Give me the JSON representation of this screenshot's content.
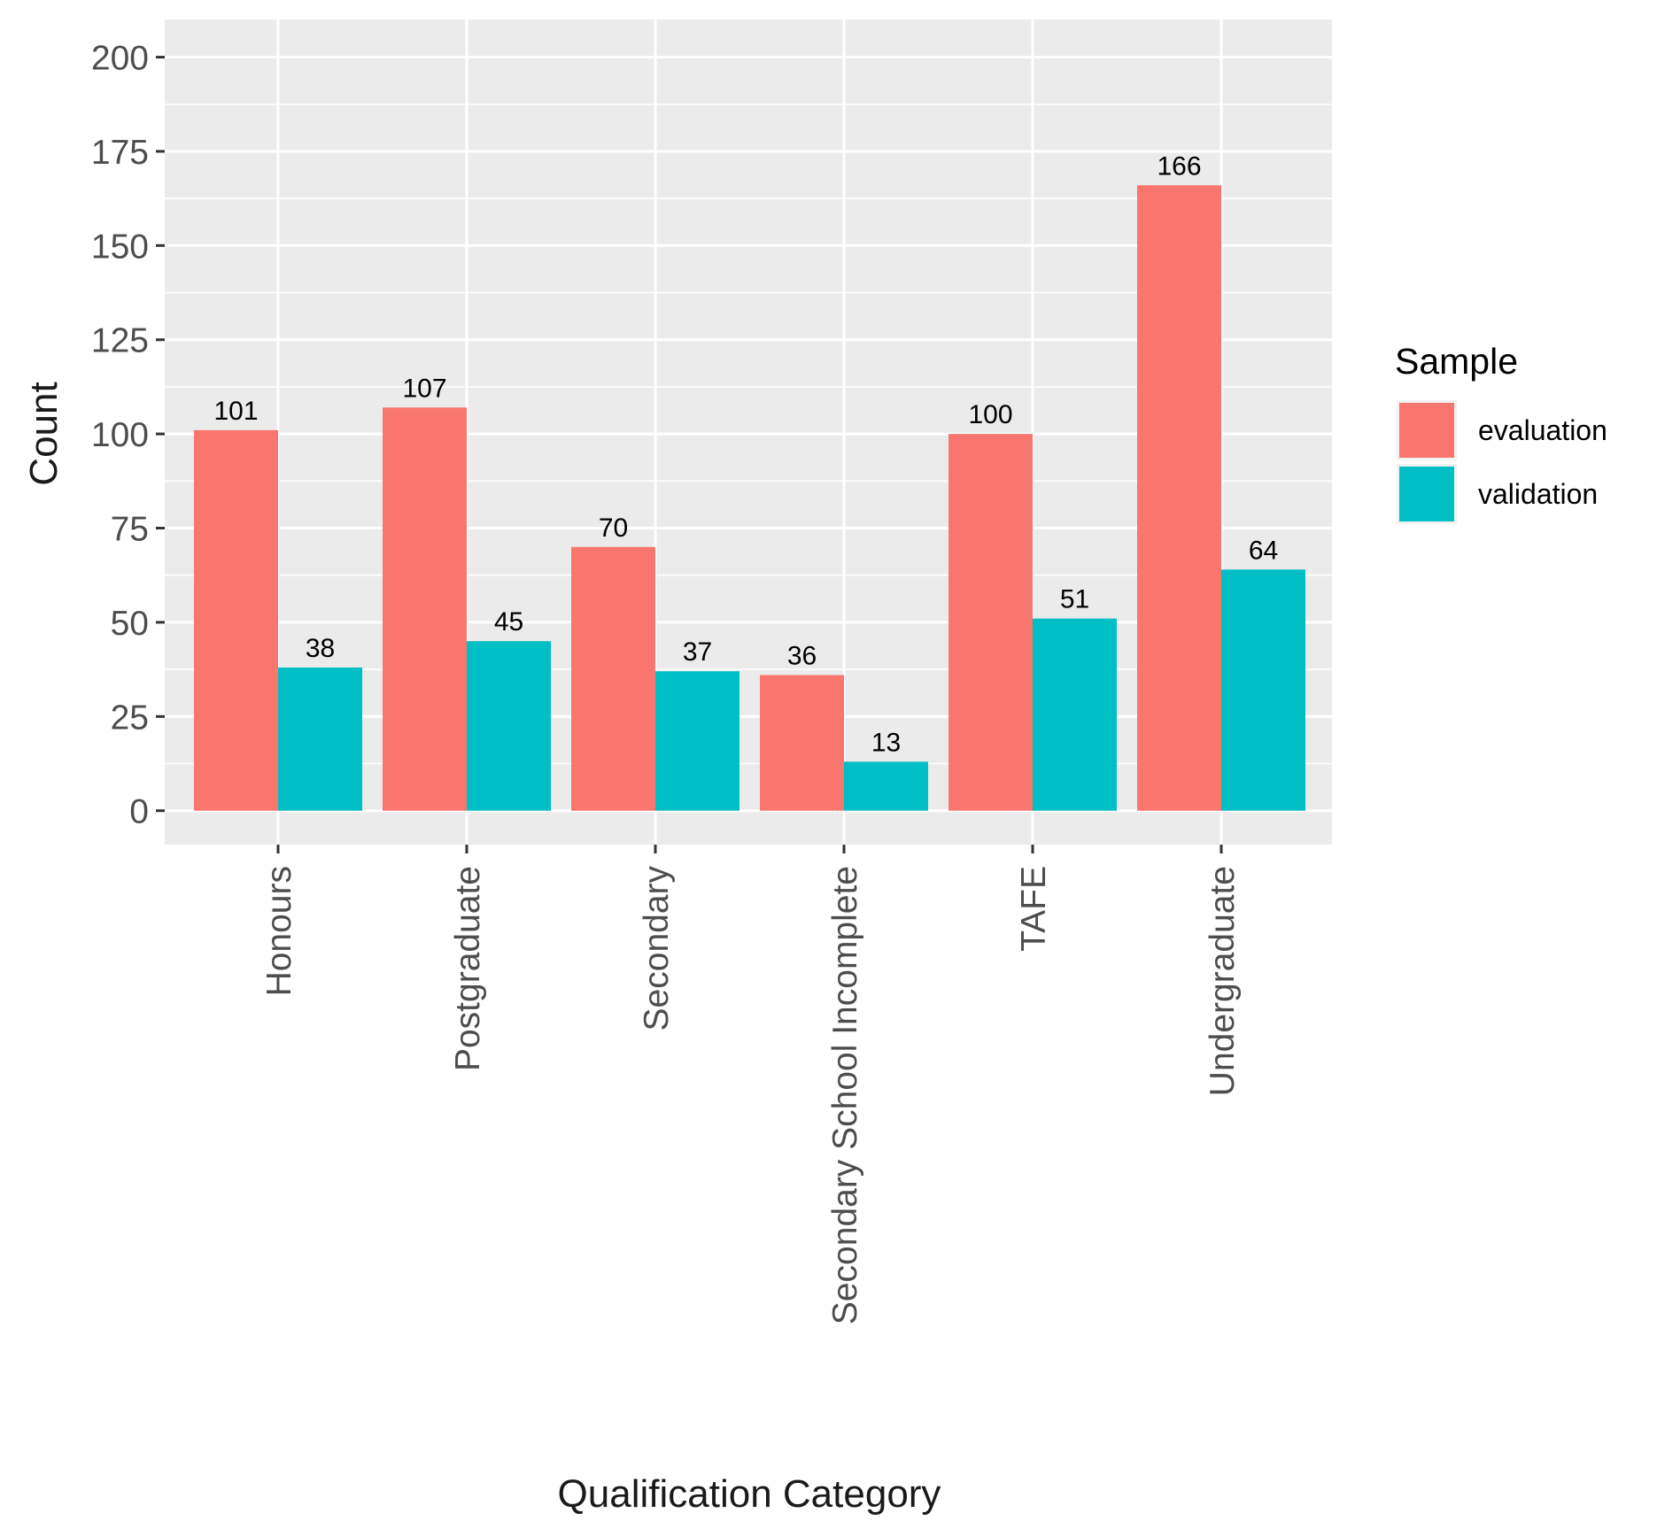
{
  "chart_data": {
    "type": "bar",
    "xlabel": "Qualification Category",
    "ylabel": "Count",
    "categories": [
      "Honours",
      "Postgraduate",
      "Secondary",
      "Secondary School Incomplete",
      "TAFE",
      "Undergraduate"
    ],
    "series": [
      {
        "name": "evaluation",
        "color": "#F8766D",
        "values": [
          101,
          107,
          70,
          36,
          100,
          166
        ]
      },
      {
        "name": "validation",
        "color": "#00BFC4",
        "values": [
          38,
          45,
          37,
          13,
          51,
          64
        ]
      }
    ],
    "ylim": [
      -9,
      210
    ],
    "yticks": [
      0,
      25,
      50,
      75,
      100,
      125,
      150,
      175,
      200
    ],
    "grid": true,
    "legend": {
      "title": "Sample",
      "position": "right"
    },
    "panel_color": "#EBEBEB"
  }
}
